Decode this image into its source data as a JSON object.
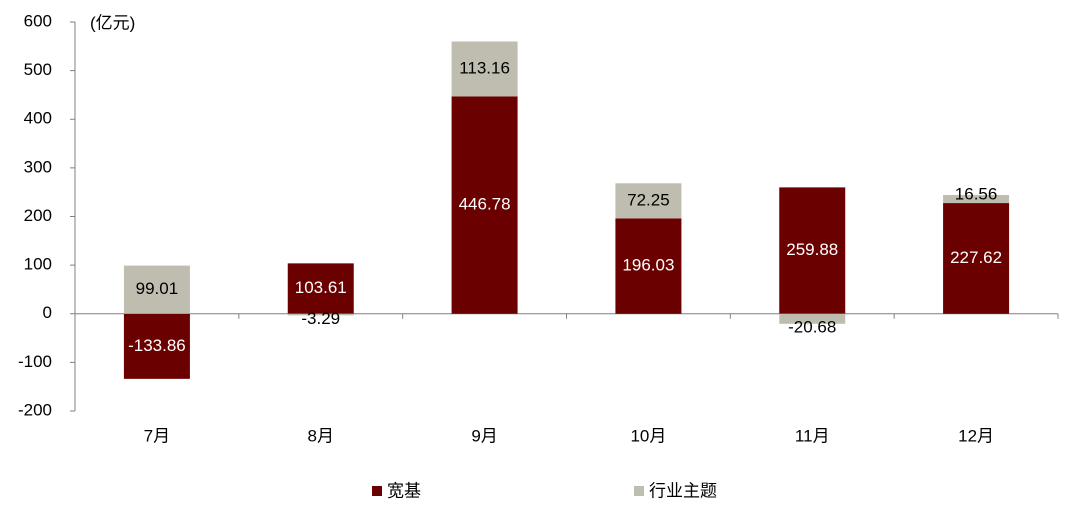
{
  "chart_data": {
    "type": "bar",
    "stacked": true,
    "unit_label": "(亿元)",
    "categories": [
      "7月",
      "8月",
      "9月",
      "10月",
      "11月",
      "12月"
    ],
    "series": [
      {
        "name": "宽基",
        "color": "#6b0000",
        "label_color": "#ffffff",
        "values": [
          -133.86,
          103.61,
          446.78,
          196.03,
          259.88,
          227.62
        ]
      },
      {
        "name": "行业主题",
        "color": "#bfbdb0",
        "label_color": "#000000",
        "values": [
          99.01,
          -3.29,
          113.16,
          72.25,
          -20.68,
          16.56
        ]
      }
    ],
    "ylim": [
      -200,
      600
    ],
    "yticks": [
      -200,
      -100,
      0,
      100,
      200,
      300,
      400,
      500,
      600
    ],
    "grid": false,
    "legend": "bottom"
  }
}
